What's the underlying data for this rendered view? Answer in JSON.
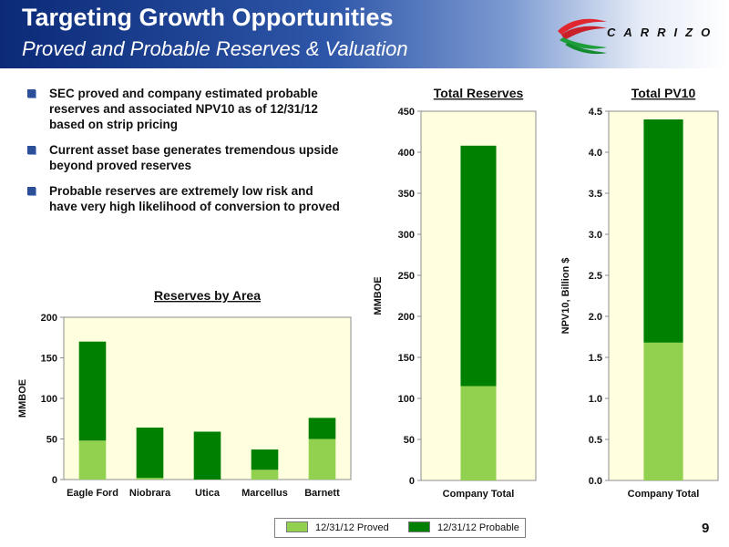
{
  "header": {
    "title": "Targeting Growth Opportunities",
    "subtitle": "Proved and Probable Reserves & Valuation"
  },
  "logo": {
    "text": "CARRIZO",
    "icon": "carrizo-swoosh-logo"
  },
  "bullets": [
    "SEC proved and company estimated probable reserves and associated NPV10 as of 12/31/12 based on strip pricing",
    "Current asset base generates tremendous upside beyond proved reserves",
    "Probable reserves are extremely low risk and have very high likelihood of conversion to proved"
  ],
  "legend": [
    {
      "label": "12/31/12 Proved",
      "color": "#92d050"
    },
    {
      "label": "12/31/12 Probable",
      "color": "#008000"
    }
  ],
  "page_number": "9",
  "chart_data": [
    {
      "type": "bar",
      "stacked": true,
      "title": "Reserves by Area",
      "xlabel": "",
      "ylabel": "MMBOE",
      "categories": [
        "Eagle Ford",
        "Niobrara",
        "Utica",
        "Marcellus",
        "Barnett"
      ],
      "series": [
        {
          "name": "12/31/12 Proved",
          "values": [
            48,
            2,
            0,
            12,
            50
          ]
        },
        {
          "name": "12/31/12 Probable",
          "values": [
            122,
            62,
            59,
            25,
            26
          ]
        }
      ],
      "ylim": [
        0,
        200
      ],
      "yticks": [
        "0",
        "50",
        "100",
        "150",
        "200"
      ],
      "grid": false,
      "background": "#ffffe0",
      "legend": "bottom"
    },
    {
      "type": "bar",
      "stacked": true,
      "title": "Total Reserves",
      "xlabel": "",
      "ylabel": "MMBOE",
      "categories": [
        "Company Total"
      ],
      "series": [
        {
          "name": "12/31/12 Proved",
          "values": [
            115
          ]
        },
        {
          "name": "12/31/12 Probable",
          "values": [
            293
          ]
        }
      ],
      "ylim": [
        0,
        450
      ],
      "yticks": [
        "0",
        "50",
        "100",
        "150",
        "200",
        "250",
        "300",
        "350",
        "400",
        "450"
      ],
      "grid": false,
      "background": "#ffffe0",
      "legend": "bottom"
    },
    {
      "type": "bar",
      "stacked": true,
      "title": "Total PV10",
      "xlabel": "",
      "ylabel": "NPV10, Billion $",
      "categories": [
        "Company Total"
      ],
      "series": [
        {
          "name": "12/31/12 Proved",
          "values": [
            1.68
          ]
        },
        {
          "name": "12/31/12 Probable",
          "values": [
            2.72
          ]
        }
      ],
      "ylim": [
        0,
        4.5
      ],
      "yticks": [
        "0.0",
        "0.5",
        "1.0",
        "1.5",
        "2.0",
        "2.5",
        "3.0",
        "3.5",
        "4.0",
        "4.5"
      ],
      "grid": false,
      "background": "#ffffe0",
      "legend": "bottom"
    }
  ]
}
